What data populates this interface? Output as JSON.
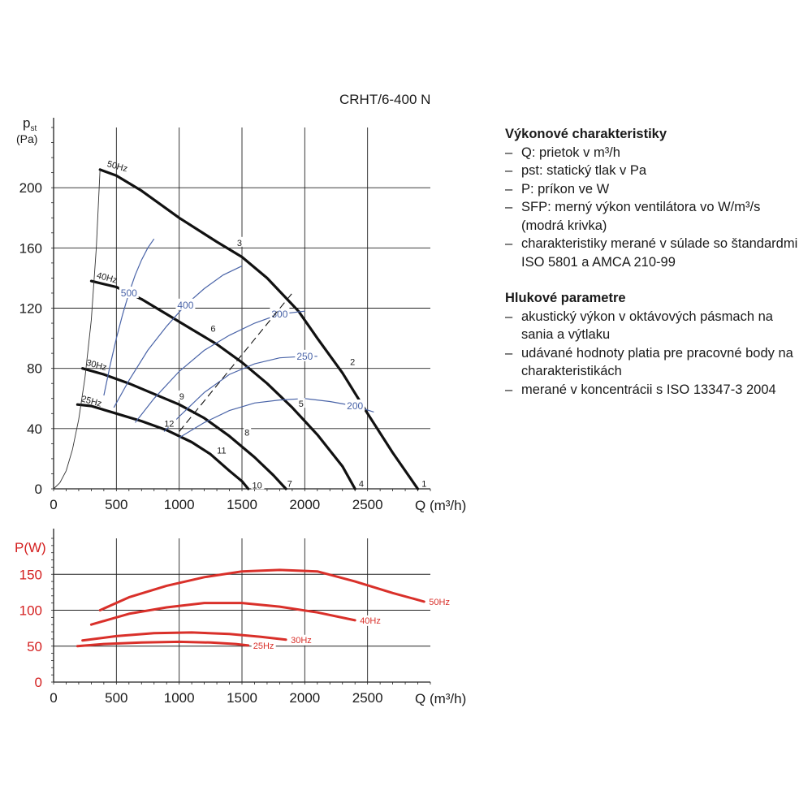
{
  "title": "CRHT/6-400 N",
  "legend": {
    "sections": [
      {
        "heading": "Výkonové charakteristiky",
        "items": [
          "Q: prietok v m³/h",
          "pst: statický tlak v Pa",
          "P: príkon ve W",
          "SFP: merný výkon ventilátora vo W/m³/s (modrá krivka)",
          "charakteristiky merané v súlade so štandardmi ISO 5801 a AMCA 210-99"
        ]
      },
      {
        "heading": "Hlukové parametre",
        "items": [
          "akustický výkon v oktávových pásmach na sania a výtlaku",
          "udávané hodnoty platia pre pracovné body na charakteristikách",
          "merané v koncentrácii s ISO 13347-3 2004"
        ]
      }
    ]
  },
  "colors": {
    "pressure_curve": "#111111",
    "sfp_curve": "#4a64a8",
    "power_curve": "#d9302a",
    "power_axis_text": "#d42020",
    "grid": "#222222"
  },
  "chart_data": [
    {
      "type": "line",
      "ylabel": "pst",
      "ylabel_unit": "(Pa)",
      "xlabel": "Q (m³/h)",
      "xlim": [
        0,
        3000
      ],
      "ylim": [
        0,
        240
      ],
      "xticks": [
        0,
        500,
        1000,
        1500,
        2000,
        2500
      ],
      "yticks": [
        0,
        40,
        80,
        120,
        160,
        200
      ],
      "grid": true,
      "series": [
        {
          "name": "50Hz",
          "kind": "pressure",
          "x": [
            370,
            500,
            700,
            1000,
            1300,
            1500,
            1700,
            1950,
            2100,
            2300,
            2500,
            2700,
            2900
          ],
          "y": [
            212,
            208,
            198,
            180,
            164,
            154,
            140,
            118,
            100,
            77,
            50,
            24,
            0
          ]
        },
        {
          "name": "40Hz",
          "kind": "pressure",
          "x": [
            300,
            500,
            700,
            900,
            1100,
            1300,
            1500,
            1700,
            1900,
            2100,
            2300,
            2400
          ],
          "y": [
            138,
            134,
            126,
            116,
            106,
            96,
            84,
            70,
            54,
            36,
            15,
            0
          ]
        },
        {
          "name": "30Hz",
          "kind": "pressure",
          "x": [
            230,
            400,
            600,
            800,
            1000,
            1200,
            1400,
            1600,
            1750,
            1850
          ],
          "y": [
            80,
            76,
            70,
            63,
            56,
            47,
            35,
            21,
            9,
            0
          ]
        },
        {
          "name": "25Hz",
          "kind": "pressure",
          "x": [
            190,
            300,
            500,
            700,
            900,
            1100,
            1250,
            1400,
            1500,
            1550
          ],
          "y": [
            56,
            55,
            50,
            45,
            39,
            31,
            23,
            12,
            5,
            0
          ]
        },
        {
          "name": "system",
          "kind": "system",
          "x": [
            0,
            50,
            100,
            150,
            200,
            250,
            300,
            340,
            370
          ],
          "y": [
            0,
            4,
            12,
            26,
            46,
            74,
            112,
            160,
            212
          ]
        },
        {
          "name": "SFP 500",
          "kind": "sfp",
          "label": "500",
          "x": [
            400,
            450,
            500,
            550,
            600,
            650,
            700,
            750,
            800
          ],
          "y": [
            62,
            82,
            100,
            116,
            130,
            142,
            152,
            160,
            166
          ]
        },
        {
          "name": "SFP 400",
          "kind": "sfp",
          "label": "400",
          "x": [
            480,
            600,
            750,
            900,
            1050,
            1200,
            1350,
            1500
          ],
          "y": [
            54,
            72,
            92,
            108,
            122,
            133,
            142,
            148
          ]
        },
        {
          "name": "SFP 300",
          "kind": "sfp",
          "label": "300",
          "x": [
            650,
            800,
            1000,
            1200,
            1400,
            1600,
            1800,
            2000
          ],
          "y": [
            44,
            60,
            78,
            92,
            102,
            110,
            116,
            118
          ]
        },
        {
          "name": "SFP 250",
          "kind": "sfp",
          "label": "250",
          "x": [
            880,
            1000,
            1200,
            1400,
            1600,
            1800,
            2000,
            2100
          ],
          "y": [
            38,
            48,
            64,
            76,
            83,
            87,
            88,
            88
          ]
        },
        {
          "name": "SFP 200",
          "kind": "sfp",
          "label": "200",
          "x": [
            1000,
            1200,
            1400,
            1600,
            1800,
            2000,
            2200,
            2400,
            2550
          ],
          "y": [
            34,
            44,
            52,
            57,
            59,
            60,
            58,
            55,
            51
          ]
        },
        {
          "name": "operating line",
          "kind": "dashed",
          "x": [
            1000,
            1900
          ],
          "y": [
            38,
            130
          ]
        }
      ],
      "point_labels": [
        {
          "text": "1",
          "x": 2950,
          "y": 3
        },
        {
          "text": "2",
          "x": 2380,
          "y": 84
        },
        {
          "text": "3",
          "x": 1480,
          "y": 163
        },
        {
          "text": "4",
          "x": 2450,
          "y": 3
        },
        {
          "text": "5",
          "x": 1970,
          "y": 56
        },
        {
          "text": "6",
          "x": 1270,
          "y": 106
        },
        {
          "text": "7",
          "x": 1880,
          "y": 3
        },
        {
          "text": "8",
          "x": 1540,
          "y": 37
        },
        {
          "text": "9",
          "x": 1020,
          "y": 61
        },
        {
          "text": "10",
          "x": 1600,
          "y": 2
        },
        {
          "text": "11",
          "x": 1320,
          "y": 25
        },
        {
          "text": "12",
          "x": 900,
          "y": 43
        }
      ]
    },
    {
      "type": "line",
      "ylabel": "P(W)",
      "xlabel": "Q (m³/h)",
      "xlim": [
        0,
        3000
      ],
      "ylim": [
        0,
        200
      ],
      "xticks": [
        0,
        500,
        1000,
        1500,
        2000,
        2500
      ],
      "yticks": [
        0,
        50,
        100,
        150
      ],
      "grid": true,
      "series": [
        {
          "name": "50Hz",
          "x": [
            370,
            600,
            900,
            1200,
            1500,
            1800,
            2100,
            2400,
            2700,
            2950
          ],
          "y": [
            100,
            118,
            134,
            146,
            154,
            156,
            154,
            140,
            124,
            112
          ]
        },
        {
          "name": "40Hz",
          "x": [
            300,
            600,
            900,
            1200,
            1500,
            1800,
            2100,
            2400
          ],
          "y": [
            80,
            95,
            104,
            110,
            110,
            105,
            97,
            86
          ]
        },
        {
          "name": "30Hz",
          "x": [
            230,
            500,
            800,
            1100,
            1400,
            1650,
            1850
          ],
          "y": [
            58,
            64,
            68,
            69,
            67,
            63,
            59
          ]
        },
        {
          "name": "25Hz",
          "x": [
            190,
            400,
            700,
            1000,
            1250,
            1450,
            1550
          ],
          "y": [
            50,
            53,
            55,
            56,
            55,
            53,
            51
          ]
        }
      ]
    }
  ]
}
